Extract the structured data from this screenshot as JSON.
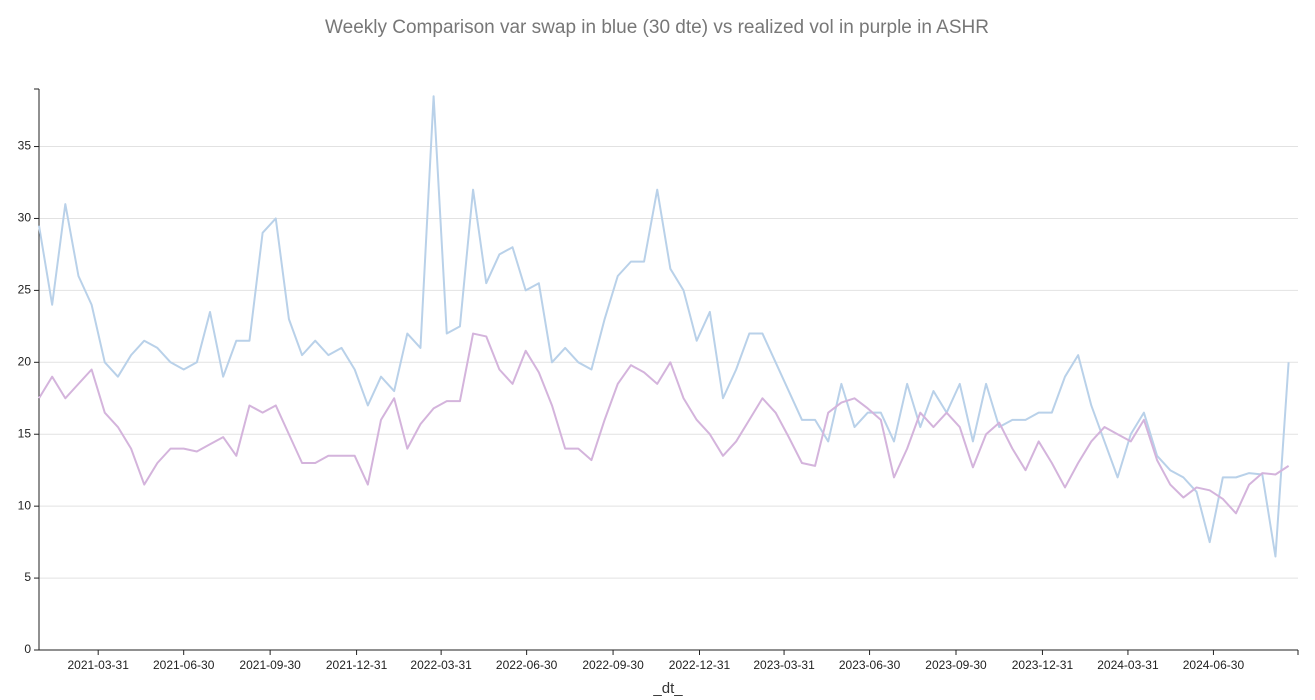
{
  "chart_data": {
    "type": "line",
    "title": "Weekly Comparison var swap in blue (30 dte) vs realized vol in purple in ASHR",
    "x_label": "_dt_",
    "x": [
      "2021-01-27",
      "2021-02-10",
      "2021-02-24",
      "2021-03-10",
      "2021-03-24",
      "2021-04-07",
      "2021-04-21",
      "2021-05-05",
      "2021-05-19",
      "2021-06-02",
      "2021-06-16",
      "2021-06-30",
      "2021-07-14",
      "2021-07-28",
      "2021-08-11",
      "2021-08-25",
      "2021-09-08",
      "2021-09-22",
      "2021-10-06",
      "2021-10-20",
      "2021-11-03",
      "2021-11-17",
      "2021-12-01",
      "2021-12-15",
      "2021-12-29",
      "2022-01-12",
      "2022-01-26",
      "2022-02-09",
      "2022-02-23",
      "2022-03-09",
      "2022-03-23",
      "2022-04-06",
      "2022-04-20",
      "2022-05-04",
      "2022-05-18",
      "2022-06-01",
      "2022-06-15",
      "2022-06-29",
      "2022-07-13",
      "2022-07-27",
      "2022-08-10",
      "2022-08-24",
      "2022-09-07",
      "2022-09-21",
      "2022-10-05",
      "2022-10-19",
      "2022-11-02",
      "2022-11-16",
      "2022-11-30",
      "2022-12-14",
      "2022-12-28",
      "2023-01-11",
      "2023-01-25",
      "2023-02-08",
      "2023-02-22",
      "2023-03-08",
      "2023-03-22",
      "2023-04-05",
      "2023-04-19",
      "2023-05-03",
      "2023-05-17",
      "2023-05-31",
      "2023-06-14",
      "2023-06-28",
      "2023-07-12",
      "2023-07-26",
      "2023-08-09",
      "2023-08-23",
      "2023-09-06",
      "2023-09-20",
      "2023-10-04",
      "2023-10-18",
      "2023-11-01",
      "2023-11-15",
      "2023-11-29",
      "2023-12-13",
      "2023-12-27",
      "2024-01-10",
      "2024-01-24",
      "2024-02-07",
      "2024-02-21",
      "2024-03-06",
      "2024-03-20",
      "2024-04-03",
      "2024-04-17",
      "2024-05-01",
      "2024-05-15",
      "2024-05-29",
      "2024-06-12",
      "2024-06-26",
      "2024-07-10",
      "2024-07-24",
      "2024-08-07",
      "2024-08-21",
      "2024-09-04",
      "2024-09-18"
    ],
    "series": [
      {
        "color": "#b9d1e9",
        "values": [
          29.5,
          24,
          31,
          26,
          24,
          20,
          19,
          20.5,
          21.5,
          21,
          20,
          19.5,
          20,
          23.5,
          19,
          21.5,
          21.5,
          29,
          30,
          23,
          20.5,
          21.5,
          20.5,
          21,
          19.5,
          17,
          19,
          18,
          22,
          21,
          38.5,
          22,
          22.5,
          32,
          25.5,
          27.5,
          28,
          25,
          25.5,
          20,
          21,
          20,
          19.5,
          23,
          26,
          27,
          27,
          32,
          26.5,
          25,
          21.5,
          23.5,
          17.5,
          19.5,
          22,
          22,
          20,
          18,
          16,
          16,
          14.5,
          18.5,
          15.5,
          16.5,
          16.5,
          14.5,
          18.5,
          15.5,
          18,
          16.5,
          18.5,
          14.5,
          18.5,
          15.5,
          16,
          16,
          16.5,
          16.5,
          19,
          20.5,
          17,
          14.5,
          12,
          15,
          16.5,
          13.5,
          12.5,
          12,
          11,
          7.5,
          12,
          12,
          12.3,
          12.2,
          6.5,
          20
        ]
      },
      {
        "color": "#d4b4dc",
        "values": [
          17.5,
          19,
          17.5,
          18.5,
          19.5,
          16.5,
          15.5,
          14,
          11.5,
          13,
          14,
          14,
          13.8,
          14.3,
          14.8,
          13.5,
          17,
          16.5,
          17,
          15,
          13,
          13,
          13.5,
          13.5,
          13.5,
          11.5,
          16,
          17.5,
          14,
          15.7,
          16.8,
          17.3,
          17.3,
          22,
          21.8,
          19.5,
          18.5,
          20.8,
          19.3,
          17,
          14,
          14,
          13.2,
          16,
          18.5,
          19.8,
          19.3,
          18.5,
          20,
          17.5,
          16,
          15,
          13.5,
          14.5,
          16,
          17.5,
          16.5,
          14.8,
          13,
          12.8,
          16.5,
          17.2,
          17.5,
          16.8,
          16,
          12,
          14,
          16.5,
          15.5,
          16.5,
          15.5,
          12.7,
          15,
          15.8,
          14,
          12.5,
          14.5,
          13,
          11.3,
          13,
          14.5,
          15.5,
          15,
          14.5,
          16,
          13.2,
          11.5,
          10.6,
          11.3,
          11.1,
          10.5,
          9.5,
          11.5,
          12.3,
          12.2,
          12.8
        ]
      }
    ],
    "xlim": [
      "2021-01-27",
      "2024-09-28"
    ],
    "xticks": [
      "2021-03-31",
      "2021-06-30",
      "2021-09-30",
      "2021-12-31",
      "2022-03-31",
      "2022-06-30",
      "2022-09-30",
      "2022-12-31",
      "2023-03-31",
      "2023-06-30",
      "2023-09-30",
      "2023-12-31",
      "2024-03-31",
      "2024-06-30"
    ],
    "ylim": [
      0,
      39
    ],
    "yticks": [
      0,
      5,
      10,
      15,
      20,
      25,
      30,
      35
    ],
    "grid": true
  }
}
